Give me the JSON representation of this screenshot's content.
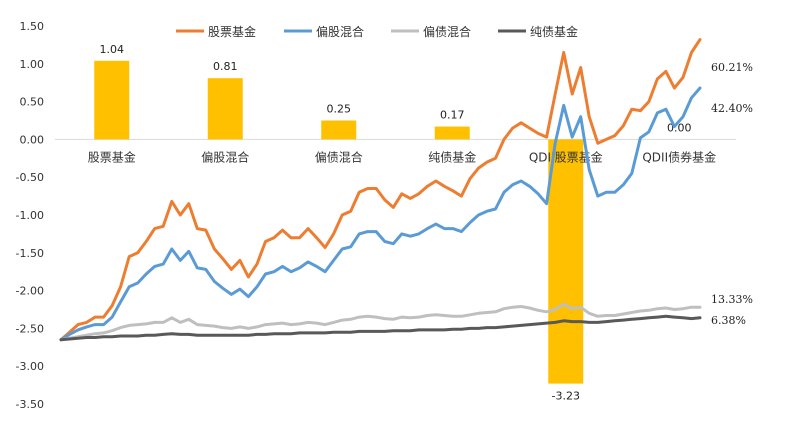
{
  "chart_data": {
    "type": "bar+line",
    "ylim": [
      -3.5,
      1.5
    ],
    "yticks": [
      "1.50",
      "1.00",
      "0.50",
      "0.00",
      "-0.50",
      "-1.00",
      "-1.50",
      "-2.00",
      "-2.50",
      "-3.00",
      "-3.50"
    ],
    "grid": false,
    "legend_position": "top",
    "bars": {
      "categories": [
        "股票基金",
        "偏股混合",
        "偏债混合",
        "纯债基金",
        "QDII股票基金",
        "QDII债券基金"
      ],
      "values": [
        1.04,
        0.81,
        0.25,
        0.17,
        -3.23,
        0.0
      ],
      "labels": [
        "1.04",
        "0.81",
        "0.25",
        "0.17",
        "-3.23",
        "0.00"
      ],
      "color": "#FFC000"
    },
    "series": [
      {
        "name": "股票基金",
        "color": "#ED7D31",
        "end_label": "60.21%",
        "values": [
          -2.65,
          -2.55,
          -2.45,
          -2.42,
          -2.35,
          -2.35,
          -2.2,
          -1.95,
          -1.55,
          -1.5,
          -1.35,
          -1.18,
          -1.15,
          -0.82,
          -1.0,
          -0.85,
          -1.18,
          -1.2,
          -1.45,
          -1.58,
          -1.72,
          -1.6,
          -1.82,
          -1.65,
          -1.35,
          -1.3,
          -1.2,
          -1.3,
          -1.3,
          -1.18,
          -1.3,
          -1.43,
          -1.25,
          -1.0,
          -0.95,
          -0.7,
          -0.65,
          -0.65,
          -0.8,
          -0.9,
          -0.72,
          -0.78,
          -0.72,
          -0.62,
          -0.55,
          -0.62,
          -0.68,
          -0.75,
          -0.52,
          -0.38,
          -0.3,
          -0.25,
          0.0,
          0.15,
          0.22,
          0.15,
          0.08,
          0.03,
          0.6,
          1.15,
          0.6,
          0.95,
          0.3,
          -0.05,
          0.0,
          0.05,
          0.18,
          0.4,
          0.38,
          0.5,
          0.8,
          0.9,
          0.68,
          0.82,
          1.15,
          1.32
        ]
      },
      {
        "name": "偏股混合",
        "color": "#5B9BD5",
        "end_label": "42.40%",
        "values": [
          -2.65,
          -2.58,
          -2.52,
          -2.48,
          -2.45,
          -2.45,
          -2.35,
          -2.15,
          -1.95,
          -1.9,
          -1.78,
          -1.68,
          -1.65,
          -1.45,
          -1.6,
          -1.48,
          -1.7,
          -1.72,
          -1.88,
          -1.97,
          -2.05,
          -1.98,
          -2.08,
          -1.95,
          -1.78,
          -1.75,
          -1.68,
          -1.75,
          -1.7,
          -1.62,
          -1.68,
          -1.75,
          -1.6,
          -1.45,
          -1.42,
          -1.25,
          -1.22,
          -1.22,
          -1.35,
          -1.38,
          -1.25,
          -1.28,
          -1.25,
          -1.18,
          -1.12,
          -1.18,
          -1.18,
          -1.22,
          -1.1,
          -1.0,
          -0.95,
          -0.92,
          -0.7,
          -0.6,
          -0.55,
          -0.62,
          -0.72,
          -0.85,
          -0.05,
          0.45,
          0.03,
          0.3,
          -0.4,
          -0.75,
          -0.7,
          -0.7,
          -0.6,
          -0.45,
          0.02,
          0.1,
          0.35,
          0.4,
          0.17,
          0.3,
          0.55,
          0.68
        ]
      },
      {
        "name": "偏债混合",
        "color": "#BFBFBF",
        "end_label": "13.33%",
        "values": [
          -2.65,
          -2.63,
          -2.61,
          -2.59,
          -2.57,
          -2.56,
          -2.53,
          -2.49,
          -2.46,
          -2.45,
          -2.44,
          -2.42,
          -2.42,
          -2.36,
          -2.42,
          -2.38,
          -2.45,
          -2.46,
          -2.47,
          -2.49,
          -2.5,
          -2.48,
          -2.5,
          -2.48,
          -2.45,
          -2.44,
          -2.43,
          -2.45,
          -2.44,
          -2.42,
          -2.43,
          -2.45,
          -2.42,
          -2.39,
          -2.38,
          -2.35,
          -2.34,
          -2.35,
          -2.37,
          -2.38,
          -2.35,
          -2.36,
          -2.35,
          -2.33,
          -2.32,
          -2.33,
          -2.34,
          -2.34,
          -2.32,
          -2.3,
          -2.29,
          -2.28,
          -2.24,
          -2.22,
          -2.21,
          -2.23,
          -2.26,
          -2.28,
          -2.25,
          -2.18,
          -2.24,
          -2.22,
          -2.3,
          -2.34,
          -2.33,
          -2.33,
          -2.31,
          -2.29,
          -2.27,
          -2.26,
          -2.24,
          -2.23,
          -2.25,
          -2.24,
          -2.22,
          -2.22
        ]
      },
      {
        "name": "纯债基金",
        "color": "#595959",
        "end_label": "6.38%",
        "values": [
          -2.65,
          -2.64,
          -2.63,
          -2.62,
          -2.62,
          -2.61,
          -2.61,
          -2.6,
          -2.6,
          -2.6,
          -2.59,
          -2.59,
          -2.58,
          -2.57,
          -2.58,
          -2.58,
          -2.59,
          -2.59,
          -2.59,
          -2.59,
          -2.59,
          -2.59,
          -2.59,
          -2.58,
          -2.58,
          -2.57,
          -2.57,
          -2.57,
          -2.56,
          -2.56,
          -2.56,
          -2.56,
          -2.55,
          -2.55,
          -2.55,
          -2.54,
          -2.54,
          -2.54,
          -2.54,
          -2.53,
          -2.53,
          -2.53,
          -2.52,
          -2.52,
          -2.52,
          -2.52,
          -2.51,
          -2.51,
          -2.5,
          -2.5,
          -2.49,
          -2.49,
          -2.48,
          -2.47,
          -2.46,
          -2.45,
          -2.44,
          -2.43,
          -2.42,
          -2.4,
          -2.41,
          -2.41,
          -2.42,
          -2.42,
          -2.41,
          -2.4,
          -2.39,
          -2.38,
          -2.37,
          -2.36,
          -2.35,
          -2.34,
          -2.35,
          -2.36,
          -2.37,
          -2.36
        ]
      }
    ]
  }
}
